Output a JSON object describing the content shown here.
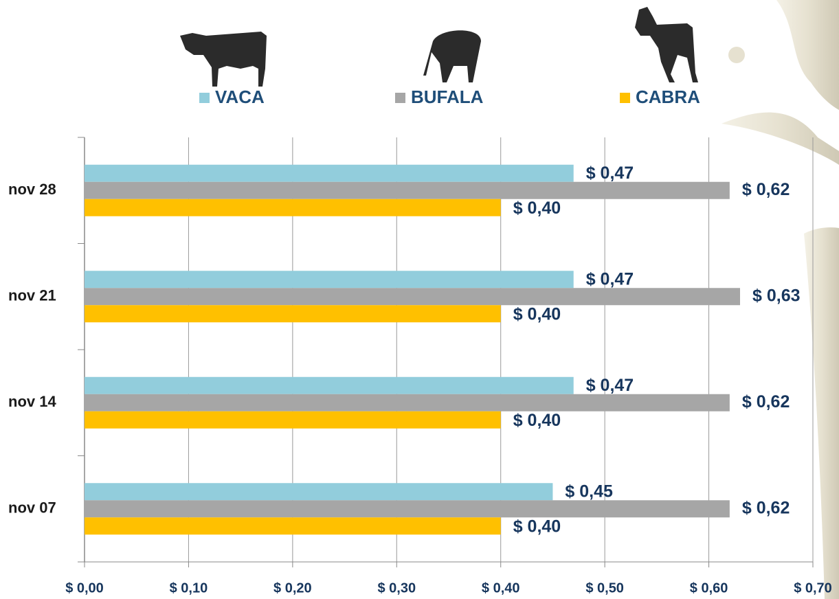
{
  "chart_data": {
    "type": "bar",
    "orientation": "horizontal",
    "categories": [
      "nov 28",
      "nov 21",
      "nov 14",
      "nov 07"
    ],
    "series": [
      {
        "name": "VACA",
        "color": "#92cddc",
        "values": [
          0.47,
          0.47,
          0.47,
          0.45
        ],
        "value_labels": [
          "$ 0,47",
          "$ 0,47",
          "$ 0,47",
          "$ 0,45"
        ]
      },
      {
        "name": "BUFALA",
        "color": "#a6a6a6",
        "values": [
          0.62,
          0.63,
          0.62,
          0.62
        ],
        "value_labels": [
          "$ 0,62",
          "$ 0,63",
          "$ 0,62",
          "$ 0,62"
        ]
      },
      {
        "name": "CABRA",
        "color": "#ffc000",
        "values": [
          0.4,
          0.4,
          0.4,
          0.4
        ],
        "value_labels": [
          "$ 0,40",
          "$ 0,40",
          "$ 0,40",
          "$ 0,40"
        ]
      }
    ],
    "xlim": [
      0,
      0.7
    ],
    "xticks": [
      {
        "value": 0,
        "label": "$ 0,00"
      },
      {
        "value": 0.1,
        "label": "$ 0,10"
      },
      {
        "value": 0.2,
        "label": "$ 0,20"
      },
      {
        "value": 0.3,
        "label": "$ 0,30"
      },
      {
        "value": 0.4,
        "label": "$ 0,40"
      },
      {
        "value": 0.5,
        "label": "$ 0,50"
      },
      {
        "value": 0.6,
        "label": "$ 0,60"
      },
      {
        "value": 0.7,
        "label": "$ 0,70"
      }
    ],
    "grid": true
  }
}
